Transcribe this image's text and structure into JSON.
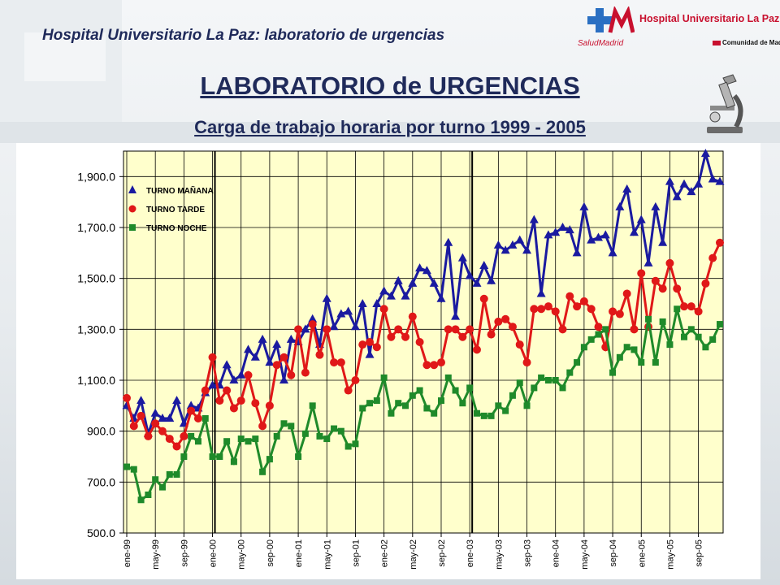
{
  "header": {
    "left_title": "Hospital Universitario La Paz: laboratorio de urgencias",
    "logo_name": "Hospital Universitario La Paz",
    "logo_sub": "SaludMadrid",
    "logo_region": "Comunidad de Madrid"
  },
  "title": "LABORATORIO de URGENCIAS",
  "subtitle": "Carga de trabajo horaria por turno 1999 - 2005",
  "chart_data": {
    "type": "line",
    "ylim": [
      500,
      2000
    ],
    "yticks": [
      500,
      700,
      900,
      1100,
      1300,
      1500,
      1700,
      1900
    ],
    "ytick_labels": [
      "500.0",
      "700.0",
      "900.0",
      "1,100.0",
      "1,300.0",
      "1,500.0",
      "1,700.0",
      "1,900.0"
    ],
    "xtick_labels": [
      "ene-99",
      "may-99",
      "sep-99",
      "ene-00",
      "may-00",
      "sep-00",
      "ene-01",
      "may-01",
      "sep-01",
      "ene-02",
      "may-02",
      "sep-02",
      "ene-03",
      "may-03",
      "sep-03",
      "ene-04",
      "may-04",
      "sep-04",
      "ene-05",
      "may-05",
      "sep-05"
    ],
    "n_points": 84,
    "grid": true,
    "legend_position": "top-left",
    "series": [
      {
        "name": "TURNO MAÑANA",
        "color": "#1a1aa0",
        "marker": "triangle",
        "values": [
          1000,
          950,
          1020,
          890,
          970,
          950,
          950,
          1020,
          930,
          1000,
          990,
          1050,
          1080,
          1080,
          1160,
          1100,
          1120,
          1220,
          1190,
          1260,
          1170,
          1240,
          1100,
          1260,
          1250,
          1300,
          1340,
          1240,
          1420,
          1310,
          1360,
          1370,
          1310,
          1400,
          1200,
          1400,
          1450,
          1430,
          1490,
          1430,
          1480,
          1540,
          1530,
          1480,
          1420,
          1640,
          1350,
          1580,
          1510,
          1480,
          1550,
          1490,
          1630,
          1610,
          1630,
          1650,
          1610,
          1730,
          1440,
          1670,
          1680,
          1700,
          1690,
          1600,
          1780,
          1650,
          1660,
          1670,
          1600,
          1780,
          1850,
          1680,
          1730,
          1560,
          1780,
          1640,
          1880,
          1820,
          1870,
          1840,
          1870,
          1990,
          1890,
          1880
        ]
      },
      {
        "name": "TURNO TARDE",
        "color": "#e01818",
        "marker": "circle",
        "values": [
          1030,
          920,
          960,
          880,
          930,
          900,
          870,
          840,
          880,
          980,
          950,
          1060,
          1190,
          1020,
          1060,
          990,
          1020,
          1120,
          1010,
          920,
          1000,
          1160,
          1190,
          1120,
          1300,
          1130,
          1320,
          1200,
          1300,
          1170,
          1170,
          1060,
          1100,
          1240,
          1250,
          1230,
          1380,
          1270,
          1300,
          1270,
          1350,
          1250,
          1160,
          1160,
          1170,
          1300,
          1300,
          1270,
          1300,
          1220,
          1420,
          1280,
          1330,
          1340,
          1310,
          1240,
          1170,
          1380,
          1380,
          1390,
          1370,
          1300,
          1430,
          1390,
          1410,
          1380,
          1310,
          1230,
          1370,
          1360,
          1440,
          1300,
          1520,
          1310,
          1490,
          1460,
          1560,
          1460,
          1390,
          1390,
          1370,
          1480,
          1580,
          1640
        ]
      },
      {
        "name": "TURNO NOCHE",
        "color": "#1f8a2a",
        "marker": "square",
        "values": [
          760,
          750,
          630,
          650,
          710,
          680,
          730,
          730,
          800,
          880,
          860,
          950,
          800,
          800,
          860,
          780,
          870,
          860,
          870,
          740,
          790,
          880,
          930,
          920,
          800,
          890,
          1000,
          880,
          870,
          910,
          900,
          840,
          850,
          990,
          1010,
          1020,
          1110,
          970,
          1010,
          1000,
          1040,
          1060,
          990,
          970,
          1020,
          1110,
          1060,
          1010,
          1070,
          970,
          960,
          960,
          1000,
          980,
          1040,
          1090,
          1000,
          1070,
          1110,
          1100,
          1100,
          1070,
          1130,
          1170,
          1230,
          1260,
          1280,
          1300,
          1130,
          1190,
          1230,
          1220,
          1170,
          1340,
          1170,
          1330,
          1240,
          1380,
          1270,
          1300,
          1270,
          1230,
          1260,
          1320
        ]
      }
    ]
  }
}
